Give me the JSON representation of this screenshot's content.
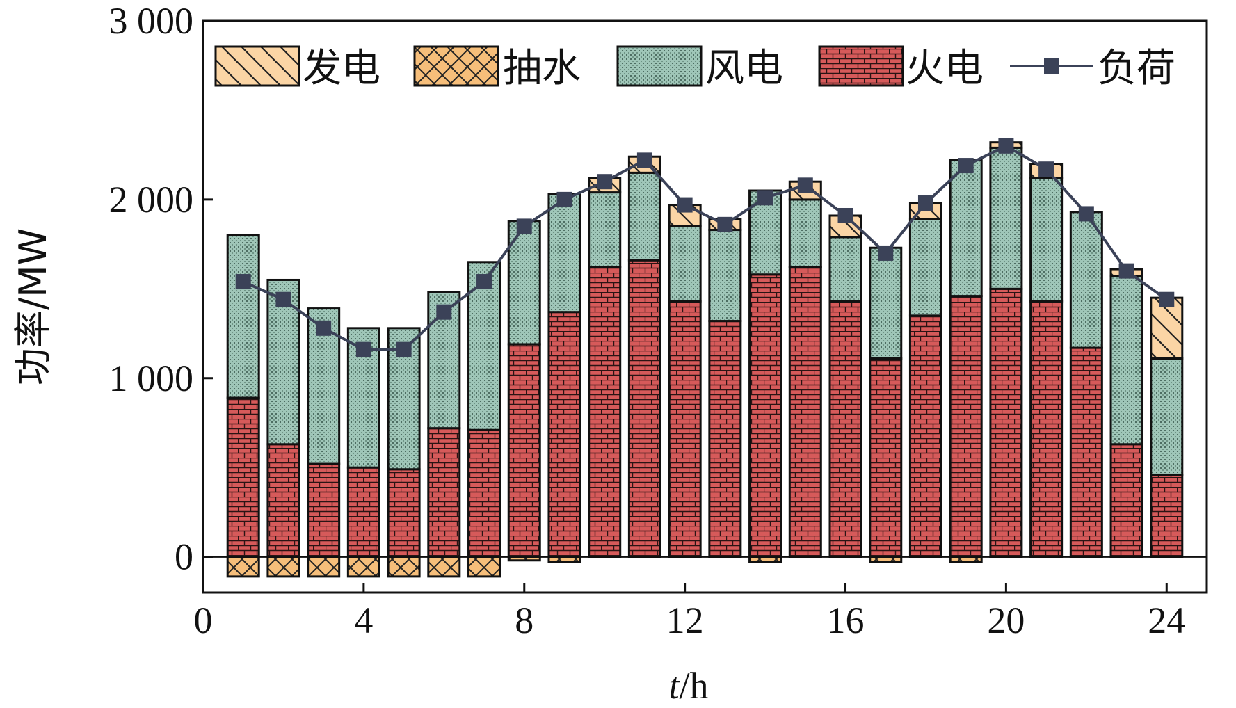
{
  "chart_data": {
    "type": "bar",
    "stacked": true,
    "x": [
      1,
      2,
      3,
      4,
      5,
      6,
      7,
      8,
      9,
      10,
      11,
      12,
      13,
      14,
      15,
      16,
      17,
      18,
      19,
      20,
      21,
      22,
      23,
      24
    ],
    "xlabel_italic": "t",
    "xlabel_unit": "/h",
    "ylabel": "功率/MW",
    "xlim": [
      0,
      25
    ],
    "ylim": [
      -200,
      3000
    ],
    "xticks": [
      0,
      4,
      8,
      12,
      16,
      20,
      24
    ],
    "yticks": [
      0,
      1000,
      2000,
      3000
    ],
    "ytick_labels": [
      "0",
      "1 000",
      "2 000",
      "3 000"
    ],
    "legend_position": "top",
    "series": [
      {
        "name": "发电",
        "kind": "bar",
        "color": "#fbd5a5",
        "pattern": "diag",
        "values": [
          0,
          0,
          0,
          0,
          0,
          0,
          0,
          0,
          0,
          80,
          90,
          120,
          60,
          0,
          100,
          120,
          0,
          90,
          0,
          30,
          80,
          0,
          40,
          340
        ]
      },
      {
        "name": "抽水",
        "kind": "bar",
        "color": "#f6be7a",
        "pattern": "cross",
        "values": [
          -110,
          -110,
          -110,
          -110,
          -110,
          -110,
          -110,
          -20,
          -30,
          0,
          0,
          0,
          0,
          -30,
          0,
          0,
          -30,
          0,
          -30,
          0,
          0,
          0,
          0,
          0
        ]
      },
      {
        "name": "风电",
        "kind": "bar",
        "color": "#9fc6b8",
        "pattern": "dots",
        "values": [
          910,
          920,
          870,
          780,
          790,
          760,
          940,
          690,
          660,
          420,
          490,
          420,
          510,
          470,
          380,
          360,
          620,
          540,
          760,
          790,
          690,
          760,
          940,
          650
        ]
      },
      {
        "name": "火电",
        "kind": "bar",
        "color": "#d65a5a",
        "pattern": "brick",
        "values": [
          890,
          630,
          520,
          500,
          490,
          720,
          710,
          1190,
          1370,
          1620,
          1660,
          1430,
          1320,
          1580,
          1620,
          1430,
          1110,
          1350,
          1460,
          1500,
          1430,
          1170,
          630,
          460
        ]
      },
      {
        "name": "负荷",
        "kind": "line",
        "color": "#3b4258",
        "marker": "square",
        "values": [
          1540,
          1440,
          1280,
          1160,
          1160,
          1370,
          1540,
          1850,
          2000,
          2100,
          2220,
          1970,
          1860,
          2010,
          2080,
          1910,
          1700,
          1980,
          2190,
          2300,
          2170,
          1920,
          1600,
          1440
        ]
      }
    ]
  }
}
